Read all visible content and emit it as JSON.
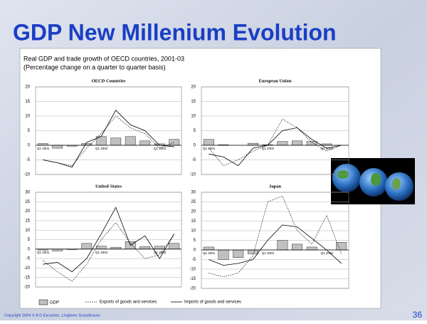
{
  "title": "GDP New Millenium Evolution",
  "subtitle": [
    "Real GDP and trade growth of OECD countries, 2001-03",
    "(Percentage change on a quarter to quarter basis)"
  ],
  "copyright": "Copyright 2004 © A G Escamez, Lingbees Scandinavia",
  "page_number": "36",
  "chart_data": [
    {
      "type": "combo",
      "title": "OECD Countries",
      "categories": [
        "Q1 2001",
        null,
        null,
        null,
        "Q1 2002",
        null,
        null,
        null,
        "Q1 2003",
        null
      ],
      "series": [
        {
          "name": "GDP",
          "type": "bar",
          "color": "#c0c0c0",
          "values": [
            0.6,
            -1.0,
            -0.3,
            0.6,
            3.0,
            2.5,
            3.0,
            1.5,
            0.5,
            2.0
          ]
        },
        {
          "name": "Exports of goods and services",
          "type": "line",
          "dash": true,
          "color": "#000000",
          "values": [
            -5,
            -6,
            -7,
            -1,
            4,
            10,
            6,
            4,
            -1,
            1
          ]
        },
        {
          "name": "Imports of goods and services",
          "type": "line",
          "dash": false,
          "color": "#000000",
          "values": [
            -5,
            -6,
            -7.5,
            1,
            3,
            12,
            7,
            5,
            0,
            -0.5
          ]
        }
      ],
      "ylim": [
        -10,
        20
      ],
      "yticks": [
        -10,
        -5,
        0,
        5,
        10,
        15,
        20
      ],
      "grid": true
    },
    {
      "type": "combo",
      "title": "European Union",
      "categories": [
        "Q1 2001",
        null,
        null,
        null,
        "Q1 2002",
        null,
        null,
        null,
        "Q1 2003",
        null
      ],
      "series": [
        {
          "type": "bar",
          "color": "#c0c0c0",
          "values": [
            2.0,
            0.2,
            0,
            0.7,
            0.2,
            1.3,
            1.5,
            1.3,
            0.5,
            0
          ]
        },
        {
          "type": "line",
          "dash": true,
          "color": "#000000",
          "values": [
            -1,
            -7,
            -5,
            -2,
            0,
            9,
            6,
            1,
            -2,
            0
          ]
        },
        {
          "type": "line",
          "dash": false,
          "color": "#000000",
          "values": [
            -3,
            -4,
            -7,
            -1,
            0,
            5,
            6,
            2,
            -1,
            0
          ]
        }
      ],
      "ylim": [
        -10,
        20
      ],
      "yticks": [
        -10,
        -5,
        0,
        5,
        10,
        15,
        20
      ],
      "grid": true
    },
    {
      "type": "combo",
      "title": "United States",
      "categories": [
        "Q1 2001",
        null,
        null,
        null,
        "Q1 2002",
        null,
        null,
        null,
        "Q1 2003",
        null
      ],
      "series": [
        {
          "type": "bar",
          "color": "#c0c0c0",
          "values": [
            -0.5,
            -1,
            -0.3,
            3,
            1.5,
            1,
            4,
            1.3,
            1.5,
            3
          ]
        },
        {
          "type": "line",
          "dash": true,
          "color": "#000000",
          "values": [
            -6,
            -12,
            -17,
            -8,
            5,
            14,
            3,
            -5,
            -3,
            8
          ]
        },
        {
          "type": "line",
          "dash": false,
          "color": "#000000",
          "values": [
            -8,
            -7,
            -12,
            -5,
            8,
            22,
            2,
            7,
            -5,
            8
          ]
        }
      ],
      "ylim": [
        -20,
        30
      ],
      "yticks": [
        -20,
        -15,
        -10,
        -5,
        0,
        5,
        10,
        15,
        20,
        25,
        30
      ],
      "grid": true
    },
    {
      "type": "combo",
      "title": "Japan",
      "categories": [
        "Q1 2001",
        null,
        null,
        null,
        "Q1 2002",
        null,
        null,
        null,
        "Q1 2003",
        null
      ],
      "series": [
        {
          "type": "bar",
          "color": "#c0c0c0",
          "values": [
            1.5,
            -5,
            -4,
            -2,
            0,
            5,
            3,
            1.5,
            0,
            4
          ]
        },
        {
          "type": "line",
          "dash": true,
          "color": "#000000",
          "values": [
            -12,
            -14,
            -12,
            -3,
            25,
            28,
            10,
            3,
            18,
            -2
          ]
        },
        {
          "type": "line",
          "dash": false,
          "color": "#000000",
          "values": [
            -5,
            -8,
            -7,
            -5,
            5,
            13,
            12,
            6,
            0,
            -7
          ]
        }
      ],
      "ylim": [
        -20,
        30
      ],
      "yticks": [
        -20,
        -15,
        -10,
        -5,
        0,
        5,
        10,
        15,
        20,
        25,
        30
      ],
      "grid": true
    }
  ]
}
